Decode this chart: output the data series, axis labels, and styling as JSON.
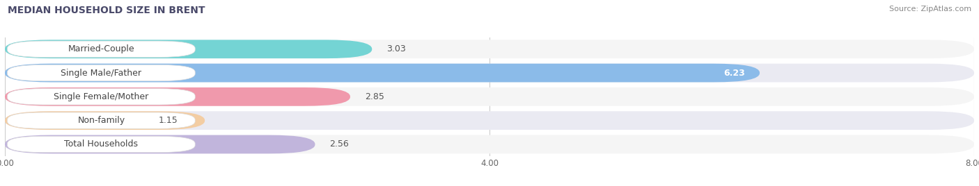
{
  "title": "MEDIAN HOUSEHOLD SIZE IN BRENT",
  "source": "Source: ZipAtlas.com",
  "categories": [
    "Married-Couple",
    "Single Male/Father",
    "Single Female/Mother",
    "Non-family",
    "Total Households"
  ],
  "values": [
    3.03,
    6.23,
    2.85,
    1.15,
    2.56
  ],
  "bar_colors": [
    "#5ecfcf",
    "#7ab3e8",
    "#f0899f",
    "#f5c896",
    "#b8aad8"
  ],
  "xlim": [
    0,
    8.0
  ],
  "xticks": [
    0.0,
    4.0,
    8.0
  ],
  "title_fontsize": 10,
  "source_fontsize": 8,
  "bar_label_fontsize": 9,
  "category_fontsize": 9,
  "tick_fontsize": 8.5,
  "background_color": "#ffffff",
  "row_bg_even": "#f5f5f5",
  "row_bg_odd": "#eaeaf2"
}
